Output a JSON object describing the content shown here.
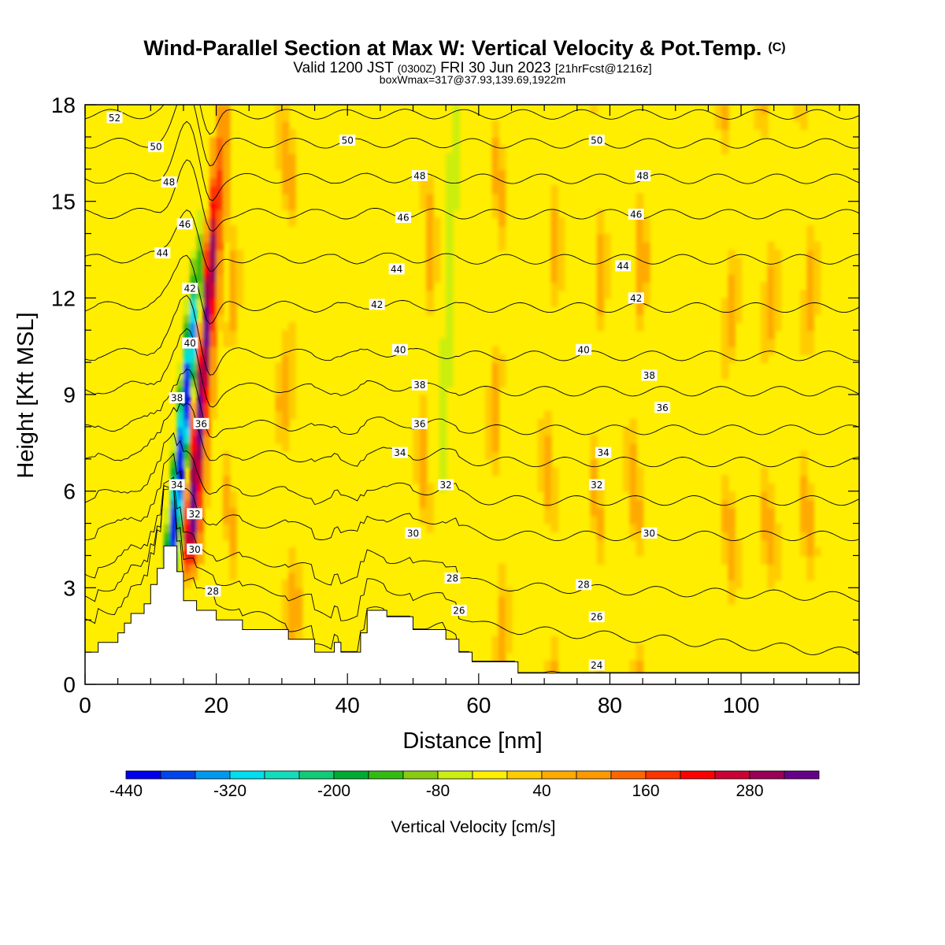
{
  "chart_data": {
    "type": "heatmap",
    "title": "Wind-Parallel Section at Max W: Vertical Velocity & Pot.Temp.",
    "title_mark": "(C)",
    "subtitle_parts": [
      "Valid 1200 JST",
      "(0300Z)",
      "FRI 30 Jun 2023",
      "[21hrFcst@1216z]"
    ],
    "subtitle2": "boxWmax=317@37.93,139.69,1922m",
    "xlabel": "Distance [nm]",
    "ylabel": "Height [Kft MSL]",
    "xlim": [
      0,
      118
    ],
    "ylim": [
      0,
      18
    ],
    "x_ticks": [
      0,
      20,
      40,
      60,
      80,
      100
    ],
    "y_ticks": [
      0,
      3,
      6,
      9,
      12,
      15,
      18
    ],
    "colorbar": {
      "title": "Vertical Velocity [cm/s]",
      "colors": [
        "#0000ee",
        "#0044ee",
        "#0099ee",
        "#00ddee",
        "#11ddbb",
        "#11cc77",
        "#00aa33",
        "#33bb11",
        "#88cc11",
        "#ccee11",
        "#ffee00",
        "#ffcc00",
        "#ffaa00",
        "#ff9900",
        "#ff6600",
        "#ff3300",
        "#ff0000",
        "#cc0033",
        "#990055",
        "#660088"
      ],
      "min": -440,
      "step": 40,
      "labels": [
        -440,
        -320,
        -200,
        -80,
        40,
        160,
        280
      ]
    },
    "terrain": [
      [
        0,
        1
      ],
      [
        2,
        1
      ],
      [
        2,
        1.3
      ],
      [
        5,
        1.3
      ],
      [
        5,
        1.6
      ],
      [
        6,
        1.6
      ],
      [
        6,
        1.9
      ],
      [
        7,
        1.9
      ],
      [
        7,
        2.2
      ],
      [
        9,
        2.2
      ],
      [
        9,
        2.5
      ],
      [
        10,
        2.5
      ],
      [
        10,
        3.1
      ],
      [
        11,
        3.1
      ],
      [
        11,
        3.6
      ],
      [
        12,
        3.6
      ],
      [
        12,
        4.3
      ],
      [
        14,
        4.3
      ],
      [
        14,
        3.5
      ],
      [
        15,
        3.5
      ],
      [
        15,
        2.6
      ],
      [
        17,
        2.6
      ],
      [
        17,
        2.3
      ],
      [
        20,
        2.3
      ],
      [
        20,
        2.0
      ],
      [
        24,
        2.0
      ],
      [
        24,
        1.7
      ],
      [
        31,
        1.7
      ],
      [
        31,
        1.4
      ],
      [
        35,
        1.4
      ],
      [
        35,
        1.0
      ],
      [
        38,
        1.0
      ],
      [
        38,
        1.3
      ],
      [
        39,
        1.3
      ],
      [
        39,
        1.0
      ],
      [
        42,
        1.0
      ],
      [
        42,
        1.6
      ],
      [
        43,
        1.6
      ],
      [
        43,
        2.3
      ],
      [
        46,
        2.3
      ],
      [
        46,
        2.1
      ],
      [
        50,
        2.1
      ],
      [
        50,
        1.7
      ],
      [
        55,
        1.7
      ],
      [
        55,
        1.4
      ],
      [
        57,
        1.4
      ],
      [
        57,
        1.0
      ],
      [
        59,
        1.0
      ],
      [
        59,
        0.7
      ],
      [
        66,
        0.7
      ],
      [
        66,
        0.35
      ],
      [
        70,
        0.35
      ],
      [
        70,
        0.35
      ],
      [
        118,
        0.35
      ]
    ],
    "theta_contours": [
      {
        "base": 1.8,
        "value": 24
      },
      {
        "base": 2.6,
        "value": 26
      },
      {
        "base": 3.4,
        "value": 28
      },
      {
        "base": 4.6,
        "value": 30
      },
      {
        "base": 5.7,
        "value": 32
      },
      {
        "base": 6.9,
        "value": 34
      },
      {
        "base": 7.9,
        "value": 36
      },
      {
        "base": 9.1,
        "value": 38
      },
      {
        "base": 10.2,
        "value": 40
      },
      {
        "base": 11.7,
        "value": 42
      },
      {
        "base": 13.2,
        "value": 44
      },
      {
        "base": 14.6,
        "value": 46
      },
      {
        "base": 15.7,
        "value": 48
      },
      {
        "base": 16.8,
        "value": 50
      },
      {
        "base": 17.7,
        "value": 52
      }
    ],
    "contour_labels": [
      {
        "x": 4.5,
        "y": 17.6,
        "text": "52"
      },
      {
        "x": 10.8,
        "y": 16.7,
        "text": "50"
      },
      {
        "x": 40.0,
        "y": 16.9,
        "text": "50"
      },
      {
        "x": 78.0,
        "y": 16.9,
        "text": "50"
      },
      {
        "x": 12.8,
        "y": 15.6,
        "text": "48"
      },
      {
        "x": 51.0,
        "y": 15.8,
        "text": "48"
      },
      {
        "x": 85.0,
        "y": 15.8,
        "text": "48"
      },
      {
        "x": 15.2,
        "y": 14.3,
        "text": "46"
      },
      {
        "x": 48.5,
        "y": 14.5,
        "text": "46"
      },
      {
        "x": 84.0,
        "y": 14.6,
        "text": "46"
      },
      {
        "x": 11.8,
        "y": 13.4,
        "text": "44"
      },
      {
        "x": 47.5,
        "y": 12.9,
        "text": "44"
      },
      {
        "x": 82.0,
        "y": 13.0,
        "text": "44"
      },
      {
        "x": 16.0,
        "y": 12.3,
        "text": "42"
      },
      {
        "x": 44.5,
        "y": 11.8,
        "text": "42"
      },
      {
        "x": 84.0,
        "y": 12.0,
        "text": "42"
      },
      {
        "x": 16.0,
        "y": 10.6,
        "text": "40"
      },
      {
        "x": 48.0,
        "y": 10.4,
        "text": "40"
      },
      {
        "x": 76.0,
        "y": 10.4,
        "text": "40"
      },
      {
        "x": 14.0,
        "y": 8.9,
        "text": "38"
      },
      {
        "x": 51.0,
        "y": 9.3,
        "text": "38"
      },
      {
        "x": 86.0,
        "y": 9.6,
        "text": "38"
      },
      {
        "x": 17.7,
        "y": 8.1,
        "text": "36"
      },
      {
        "x": 51.0,
        "y": 8.1,
        "text": "36"
      },
      {
        "x": 88.0,
        "y": 8.6,
        "text": "36"
      },
      {
        "x": 14.0,
        "y": 6.2,
        "text": "34"
      },
      {
        "x": 48.0,
        "y": 7.2,
        "text": "34"
      },
      {
        "x": 79.0,
        "y": 7.2,
        "text": "34"
      },
      {
        "x": 16.7,
        "y": 5.3,
        "text": "32"
      },
      {
        "x": 55.0,
        "y": 6.2,
        "text": "32"
      },
      {
        "x": 78.0,
        "y": 6.2,
        "text": "32"
      },
      {
        "x": 16.7,
        "y": 4.2,
        "text": "30"
      },
      {
        "x": 50.0,
        "y": 4.7,
        "text": "30"
      },
      {
        "x": 86.0,
        "y": 4.7,
        "text": "30"
      },
      {
        "x": 19.5,
        "y": 2.9,
        "text": "28"
      },
      {
        "x": 56.0,
        "y": 3.3,
        "text": "28"
      },
      {
        "x": 76.0,
        "y": 3.1,
        "text": "28"
      },
      {
        "x": 57.0,
        "y": 2.3,
        "text": "26"
      },
      {
        "x": 78.0,
        "y": 2.1,
        "text": "26"
      },
      {
        "x": 78.0,
        "y": 0.6,
        "text": "24"
      }
    ]
  }
}
